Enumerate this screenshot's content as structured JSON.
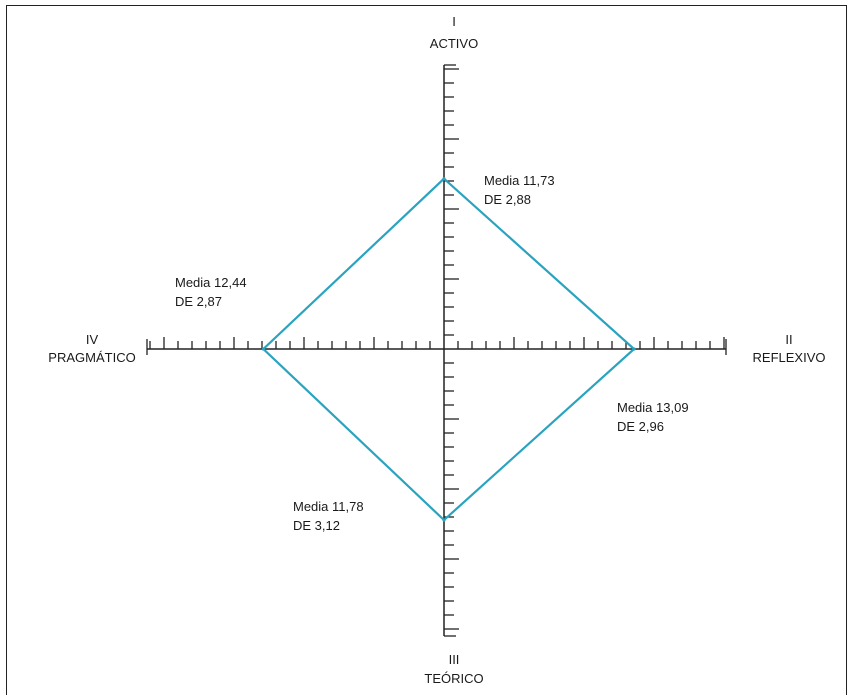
{
  "chart_data": {
    "type": "radar",
    "axes": [
      {
        "roman": "I",
        "name": "ACTIVO",
        "direction": "top"
      },
      {
        "roman": "II",
        "name": "REFLEXIVO",
        "direction": "right"
      },
      {
        "roman": "III",
        "name": "TEÓRICO",
        "direction": "bottom"
      },
      {
        "roman": "IV",
        "name": "PRAGMÁTICO",
        "direction": "left"
      }
    ],
    "axis_range": [
      0,
      20
    ],
    "tick_step": 1,
    "major_tick_every": 5,
    "points": [
      {
        "axis": "ACTIVO",
        "value": 11.73,
        "mean_label": "Media 11,73",
        "sd_label": "DE 2,88"
      },
      {
        "axis": "REFLEXIVO",
        "value": 13.09,
        "mean_label": "Media 13,09",
        "sd_label": "DE 2,96"
      },
      {
        "axis": "TEÓRICO",
        "value": 11.78,
        "mean_label": "Media 11,78",
        "sd_label": "DE 3,12"
      },
      {
        "axis": "PRAGMÁTICO",
        "value": 12.44,
        "mean_label": "Media 12,44",
        "sd_label": "DE 2,87"
      }
    ],
    "line_color": "#2aa3bf",
    "axis_color": "#222222"
  }
}
